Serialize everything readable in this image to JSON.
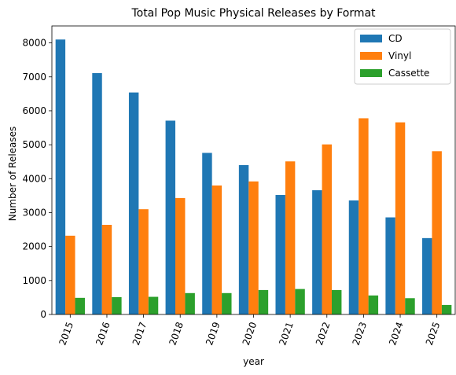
{
  "chart_data": {
    "type": "bar",
    "title": "Total Pop Music Physical Releases by Format",
    "xlabel": "year",
    "ylabel": "Number of Releases",
    "categories": [
      "2015",
      "2016",
      "2017",
      "2018",
      "2019",
      "2020",
      "2021",
      "2022",
      "2023",
      "2024",
      "2025"
    ],
    "series": [
      {
        "name": "CD",
        "color": "#1f77b4",
        "values": [
          8100,
          7110,
          6540,
          5710,
          4760,
          4400,
          3520,
          3660,
          3360,
          2860,
          2250
        ]
      },
      {
        "name": "Vinyl",
        "color": "#ff7f0e",
        "values": [
          2320,
          2640,
          3100,
          3430,
          3800,
          3920,
          4510,
          5010,
          5780,
          5660,
          4810
        ]
      },
      {
        "name": "Cassette",
        "color": "#2ca02c",
        "values": [
          490,
          510,
          520,
          630,
          630,
          720,
          750,
          720,
          560,
          480,
          280
        ]
      }
    ],
    "ylim": [
      0,
      8500
    ],
    "yticks": [
      "0",
      "1000",
      "2000",
      "3000",
      "4000",
      "5000",
      "6000",
      "7000",
      "8000"
    ],
    "legend_position": "upper-right",
    "grid": false
  }
}
